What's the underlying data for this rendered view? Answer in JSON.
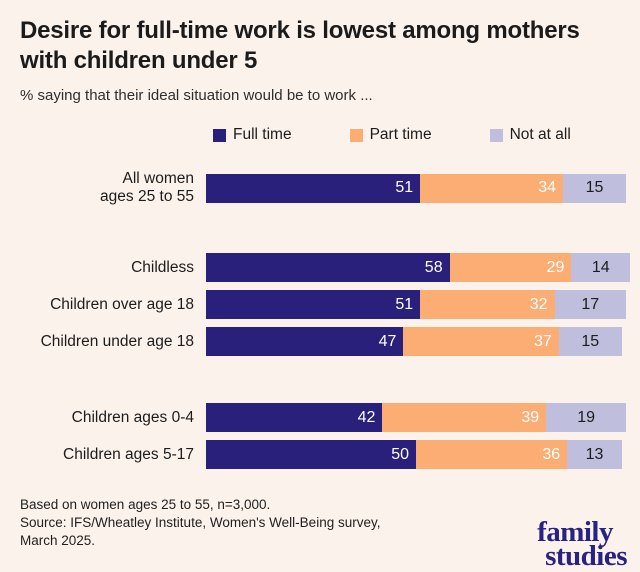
{
  "title": "Desire for full-time work is lowest among mothers with children under 5",
  "subtitle": "% saying that their ideal situation would be to work ...",
  "colors": {
    "background": "#fbf2ec",
    "full_time": "#28207b",
    "part_time": "#fbad73",
    "not_at_all": "#bfbedc",
    "dark_text": "#1c1c1c",
    "logo_navy": "#2a2184"
  },
  "legend": [
    {
      "label": "Full time",
      "color": "#28207b",
      "value_text_color": "#ffffff"
    },
    {
      "label": "Part time",
      "color": "#fbad73",
      "value_text_color": "#ffffff"
    },
    {
      "label": "Not at all",
      "color": "#bfbedc",
      "value_text_color": "#1d1d1d"
    }
  ],
  "chart_data": {
    "type": "bar",
    "orientation": "horizontal",
    "stacked": true,
    "unit": "%",
    "xlim": [
      0,
      100
    ],
    "series_names": [
      "Full time",
      "Part time",
      "Not at all"
    ],
    "legend_position": "top",
    "grid": false,
    "groups": [
      {
        "rows": [
          {
            "label_lines": [
              "All women",
              "ages 25 to 55"
            ],
            "values": [
              51,
              34,
              15
            ]
          }
        ]
      },
      {
        "rows": [
          {
            "label_lines": [
              "Childless"
            ],
            "values": [
              58,
              29,
              14
            ]
          },
          {
            "label_lines": [
              "Children over age 18"
            ],
            "values": [
              51,
              32,
              17
            ]
          },
          {
            "label_lines": [
              "Children under age 18"
            ],
            "values": [
              47,
              37,
              15
            ]
          }
        ]
      },
      {
        "rows": [
          {
            "label_lines": [
              "Children ages 0-4"
            ],
            "values": [
              42,
              39,
              19
            ]
          },
          {
            "label_lines": [
              "Children ages 5-17"
            ],
            "values": [
              50,
              36,
              13
            ]
          }
        ]
      }
    ]
  },
  "footer": {
    "lines": [
      "Based on women ages 25 to 55, n=3,000.",
      "Source: IFS/Wheatley Institute, Women's Well-Being survey,",
      "March 2025."
    ]
  },
  "logo": {
    "line1": "family",
    "line2": "studies"
  }
}
